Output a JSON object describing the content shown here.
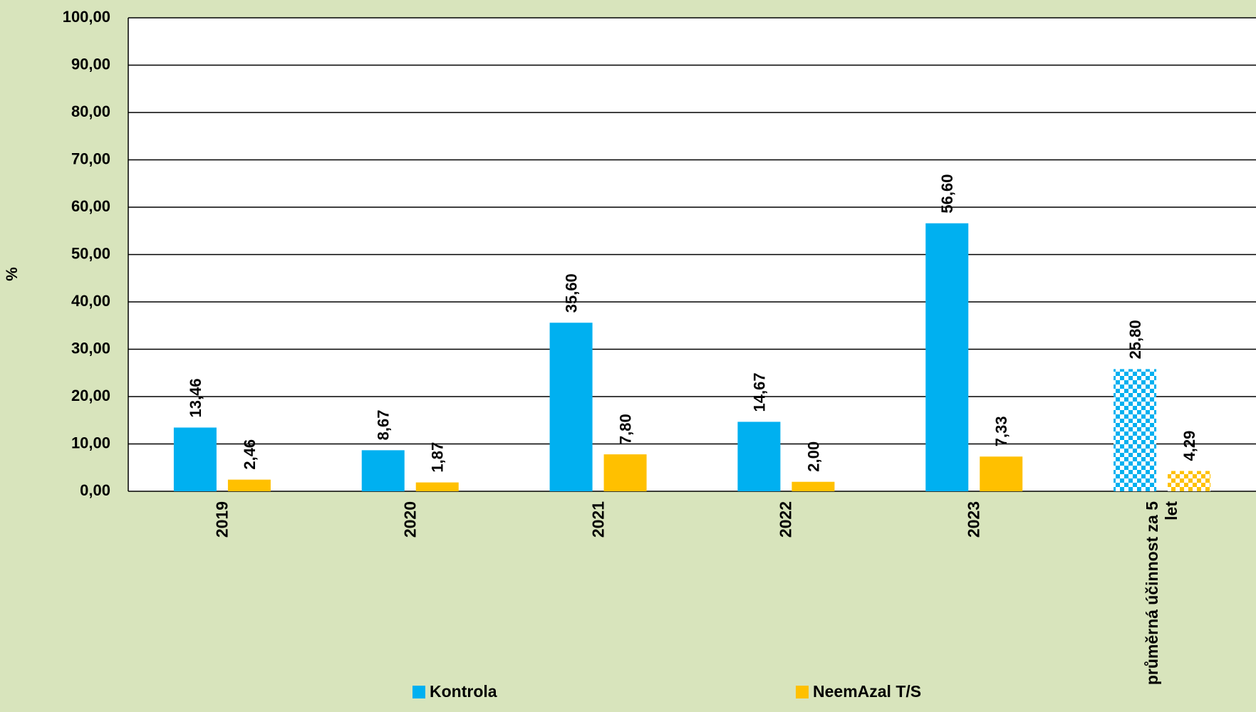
{
  "chart_data": {
    "type": "bar",
    "y_label": "%",
    "categories": [
      "2019",
      "2020",
      "2021",
      "2022",
      "2023",
      "průměrná účinnost za 5 let"
    ],
    "patterns": [
      "solid",
      "solid",
      "solid",
      "solid",
      "solid",
      "checker"
    ],
    "series": [
      {
        "name": "Kontrola",
        "color": "#00b0f0",
        "values": [
          13.46,
          8.67,
          35.6,
          14.67,
          56.6,
          25.8
        ],
        "value_labels": [
          "13,46",
          "8,67",
          "35,60",
          "14,67",
          "56,60",
          "25,80"
        ]
      },
      {
        "name": "NeemAzal T/S",
        "color": "#ffc000",
        "values": [
          2.46,
          1.87,
          7.8,
          2.0,
          7.33,
          4.29
        ],
        "value_labels": [
          "2,46",
          "1,87",
          "7,80",
          "2,00",
          "7,33",
          "4,29"
        ]
      }
    ],
    "ylim": [
      0,
      100
    ],
    "yticks": [
      {
        "value": 0,
        "label": "0,00"
      },
      {
        "value": 10,
        "label": "10,00"
      },
      {
        "value": 20,
        "label": "20,00"
      },
      {
        "value": 30,
        "label": "30,00"
      },
      {
        "value": 40,
        "label": "40,00"
      },
      {
        "value": 50,
        "label": "50,00"
      },
      {
        "value": 60,
        "label": "60,00"
      },
      {
        "value": 70,
        "label": "70,00"
      },
      {
        "value": 80,
        "label": "80,00"
      },
      {
        "value": 90,
        "label": "90,00"
      },
      {
        "value": 100,
        "label": "100,00"
      }
    ],
    "grid": true,
    "legend": "bottom"
  }
}
